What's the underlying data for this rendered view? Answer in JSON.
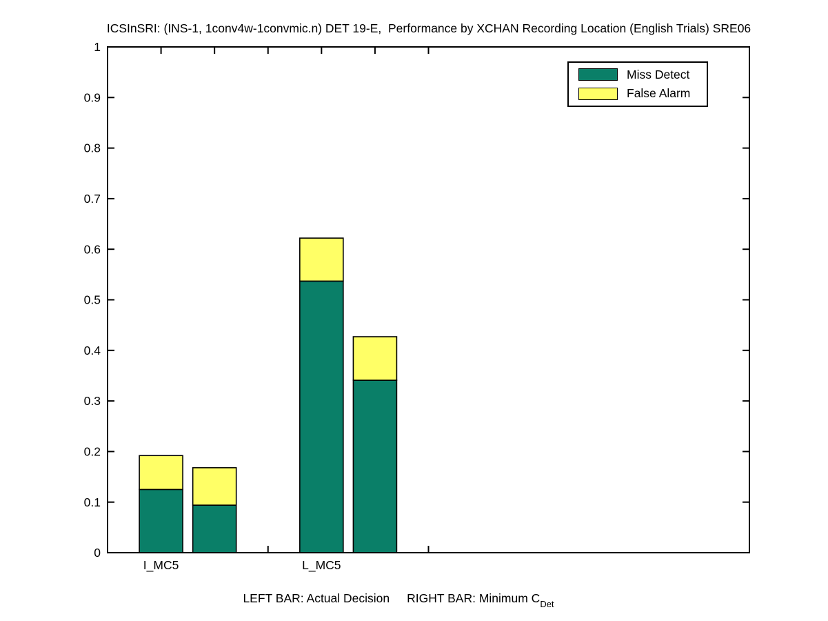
{
  "title": "ICSInSRI: (INS-1, 1conv4w-1convmic.n) DET 19-E,  Performance by XCHAN Recording Location (English Trials) SRE06",
  "chart_data": {
    "type": "bar",
    "stacked": true,
    "title": "ICSInSRI: (INS-1, 1conv4w-1convmic.n) DET 19-E,  Performance by XCHAN Recording Location (English Trials) SRE06",
    "xlabel": {
      "left": "LEFT BAR: Actual Decision",
      "right": "RIGHT BAR: Minimum C",
      "right_subscript": "Det"
    },
    "ylim": [
      0,
      1
    ],
    "ytick_labels": [
      "0",
      "0.1",
      "0.2",
      "0.3",
      "0.4",
      "0.5",
      "0.6",
      "0.7",
      "0.8",
      "0.9",
      "1"
    ],
    "categories": [
      "I_MC5",
      "L_MC5"
    ],
    "groups": [
      {
        "label": "I_MC5",
        "bars": [
          {
            "name": "actual-decision",
            "miss_detect": 0.125,
            "false_alarm": 0.067
          },
          {
            "name": "minimum-cdet",
            "miss_detect": 0.094,
            "false_alarm": 0.074
          }
        ]
      },
      {
        "label": "L_MC5",
        "bars": [
          {
            "name": "actual-decision",
            "miss_detect": 0.537,
            "false_alarm": 0.085
          },
          {
            "name": "minimum-cdet",
            "miss_detect": 0.341,
            "false_alarm": 0.086
          }
        ]
      }
    ],
    "legend": {
      "position": "top-right",
      "entries": [
        {
          "label": "Miss Detect",
          "color": "#0a7f68"
        },
        {
          "label": "False Alarm",
          "color": "#ffff66"
        }
      ]
    },
    "grid": false,
    "axis_color": "#000000",
    "background": "#ffffff"
  }
}
